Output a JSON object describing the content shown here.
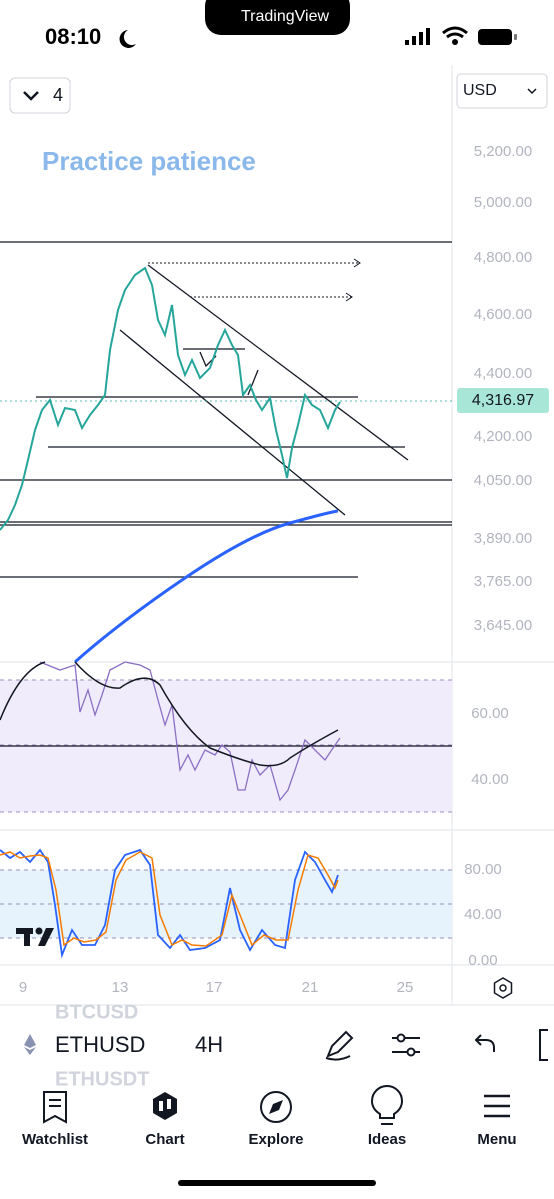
{
  "status_bar": {
    "time": "08:10",
    "app": "TradingView"
  },
  "toolbar": {
    "interval_count": "4",
    "currency": "USD"
  },
  "chart": {
    "annotation": "Practice patience",
    "price_axis": [
      "5,200.00",
      "5,000.00",
      "4,800.00",
      "4,600.00",
      "4,400.00",
      "4,200.00",
      "4,050.00",
      "3,890.00",
      "3,765.00",
      "3,645.00"
    ],
    "last_price": "4,316.97",
    "rsi_axis": [
      "60.00",
      "40.00"
    ],
    "stoch_axis": [
      "80.00",
      "40.00",
      "0.00"
    ],
    "time_axis": [
      "9",
      "13",
      "17",
      "21",
      "25"
    ]
  },
  "symbol_bar": {
    "previous": "BTCUSD",
    "symbol": "ETHUSD",
    "interval": "4H",
    "next": "ETHUSDT"
  },
  "nav": [
    "Watchlist",
    "Chart",
    "Explore",
    "Ideas",
    "Menu"
  ]
}
